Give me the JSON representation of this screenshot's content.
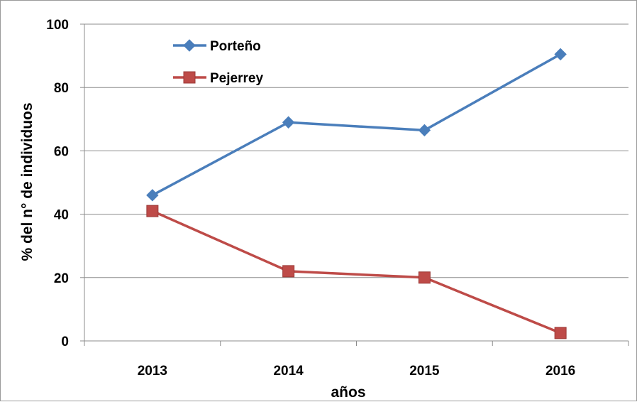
{
  "chart_data": {
    "type": "line",
    "categories": [
      "2013",
      "2014",
      "2015",
      "2016"
    ],
    "series": [
      {
        "name": "Porteño",
        "values": [
          46,
          69,
          66.5,
          90.5
        ],
        "color": "#4A7EBB",
        "marker": "diamond"
      },
      {
        "name": "Pejerrey",
        "values": [
          41,
          22,
          20,
          2.5
        ],
        "color": "#BE4B48",
        "marker": "square"
      }
    ],
    "title": "",
    "xlabel": "años",
    "ylabel": "% del n° de individuos",
    "ylim": [
      0,
      100
    ],
    "yticks": [
      0,
      20,
      40,
      60,
      80,
      100
    ],
    "grid": true,
    "legend_position": "top-left"
  }
}
